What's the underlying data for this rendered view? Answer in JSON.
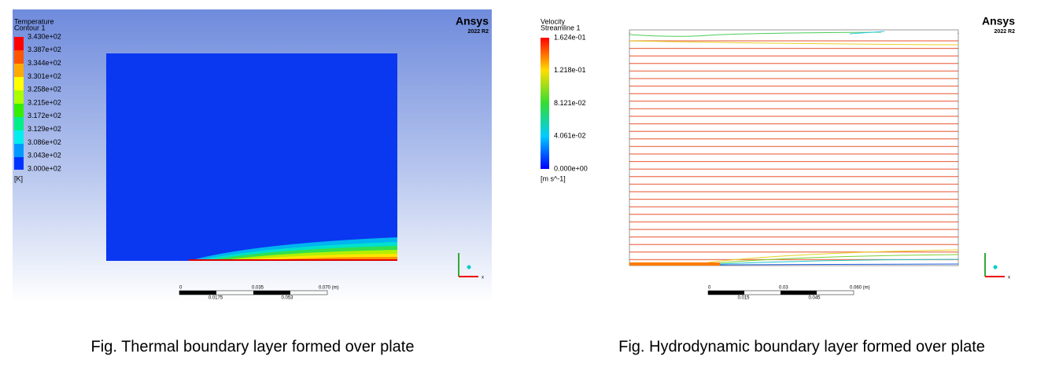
{
  "panels": [
    {
      "legend_title": [
        "Temperature",
        "Contour 1"
      ],
      "legend_labels": [
        "3.430e+02",
        "3.387e+02",
        "3.344e+02",
        "3.301e+02",
        "3.258e+02",
        "3.215e+02",
        "3.172e+02",
        "3.129e+02",
        "3.086e+02",
        "3.043e+02",
        "3.000e+02"
      ],
      "unit": "[K]",
      "logo": "Ansys",
      "version": "2022 R2",
      "scale_top": [
        "0",
        "0.035",
        "0.070 (m)"
      ],
      "scale_bottom": [
        "0.0175",
        "0.053"
      ],
      "axis_label": "x",
      "caption": "Fig. Thermal boundary layer formed over plate"
    },
    {
      "legend_title": [
        "Velocity",
        "Streamline 1"
      ],
      "legend_labels": [
        "1.624e-01",
        "1.218e-01",
        "8.121e-02",
        "4.061e-02",
        "0.000e+00"
      ],
      "unit": "[m s^-1]",
      "logo": "Ansys",
      "version": "2022 R2",
      "scale_top": [
        "0",
        "0.03",
        "0.060 (m)"
      ],
      "scale_bottom": [
        "0.015",
        "0.045"
      ],
      "axis_label": "x",
      "caption": "Fig. Hydrodynamic boundary layer formed over plate"
    }
  ]
}
